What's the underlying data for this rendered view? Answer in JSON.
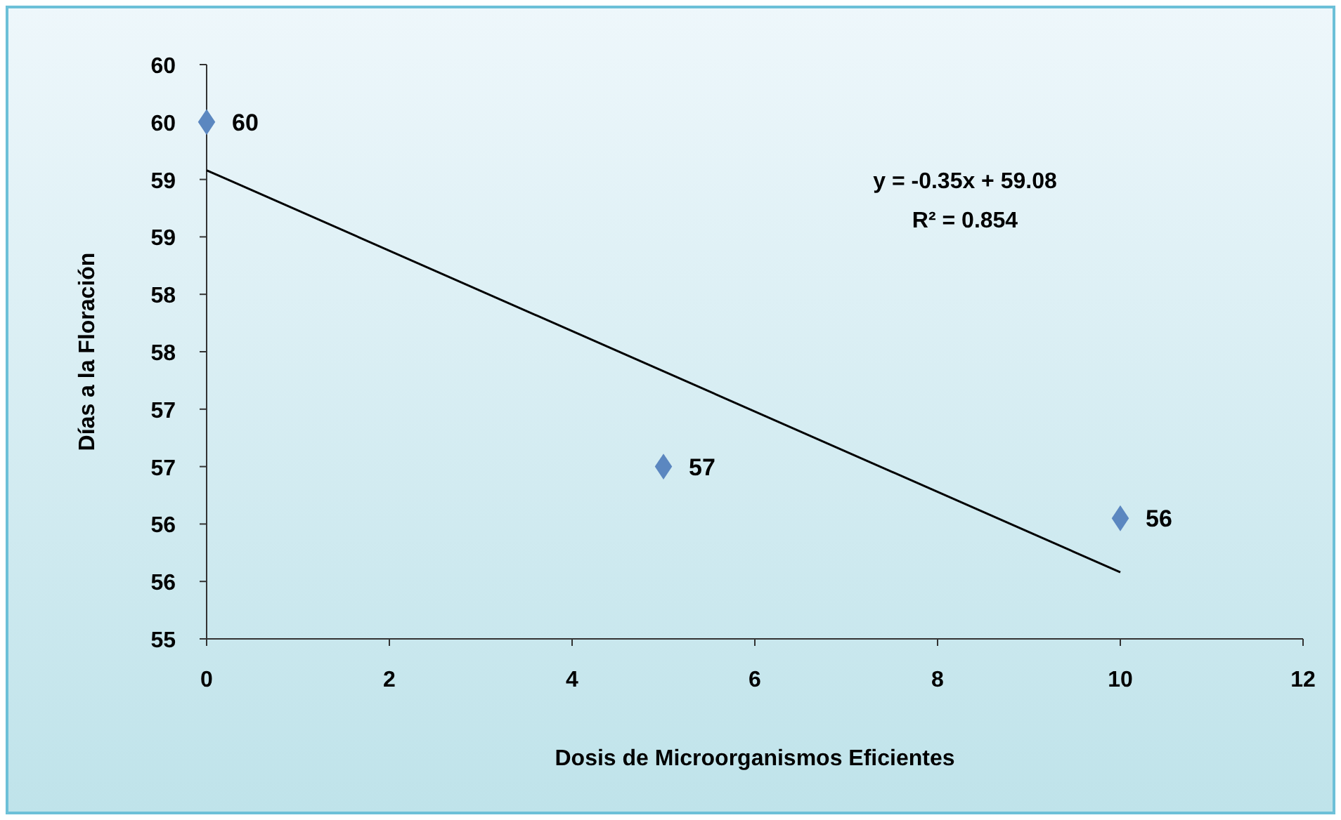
{
  "chart_data": {
    "type": "scatter",
    "xlabel": "Dosis de Microorganismos Eficientes",
    "ylabel": "Días a la Floración",
    "xlim": [
      0,
      12
    ],
    "xticks": [
      0,
      2,
      4,
      6,
      8,
      10,
      12
    ],
    "ylim": [
      55,
      60
    ],
    "yticks": [
      55,
      {
        "value": 55.5,
        "label": "56"
      },
      56,
      {
        "value": 56.5,
        "label": "57"
      },
      57,
      {
        "value": 57.5,
        "label": "58"
      },
      58,
      {
        "value": 58.5,
        "label": "59"
      },
      59,
      {
        "value": 59.5,
        "label": "60"
      },
      60
    ],
    "series": [
      {
        "color": "#5b87c0",
        "x": [
          0,
          5,
          10
        ],
        "values": [
          59.5,
          56.5,
          56.05
        ],
        "value_labels": [
          "60",
          "57",
          "56"
        ],
        "marker": "diamond"
      },
      {
        "type": "line",
        "color": "#000000",
        "x": [
          0,
          10
        ],
        "values": [
          59.08,
          55.58
        ],
        "marker": "none",
        "line_style": "solid"
      }
    ],
    "annotations": [
      "y = -0.35x + 59.08",
      "R² = 0.854"
    ],
    "grid": false
  }
}
